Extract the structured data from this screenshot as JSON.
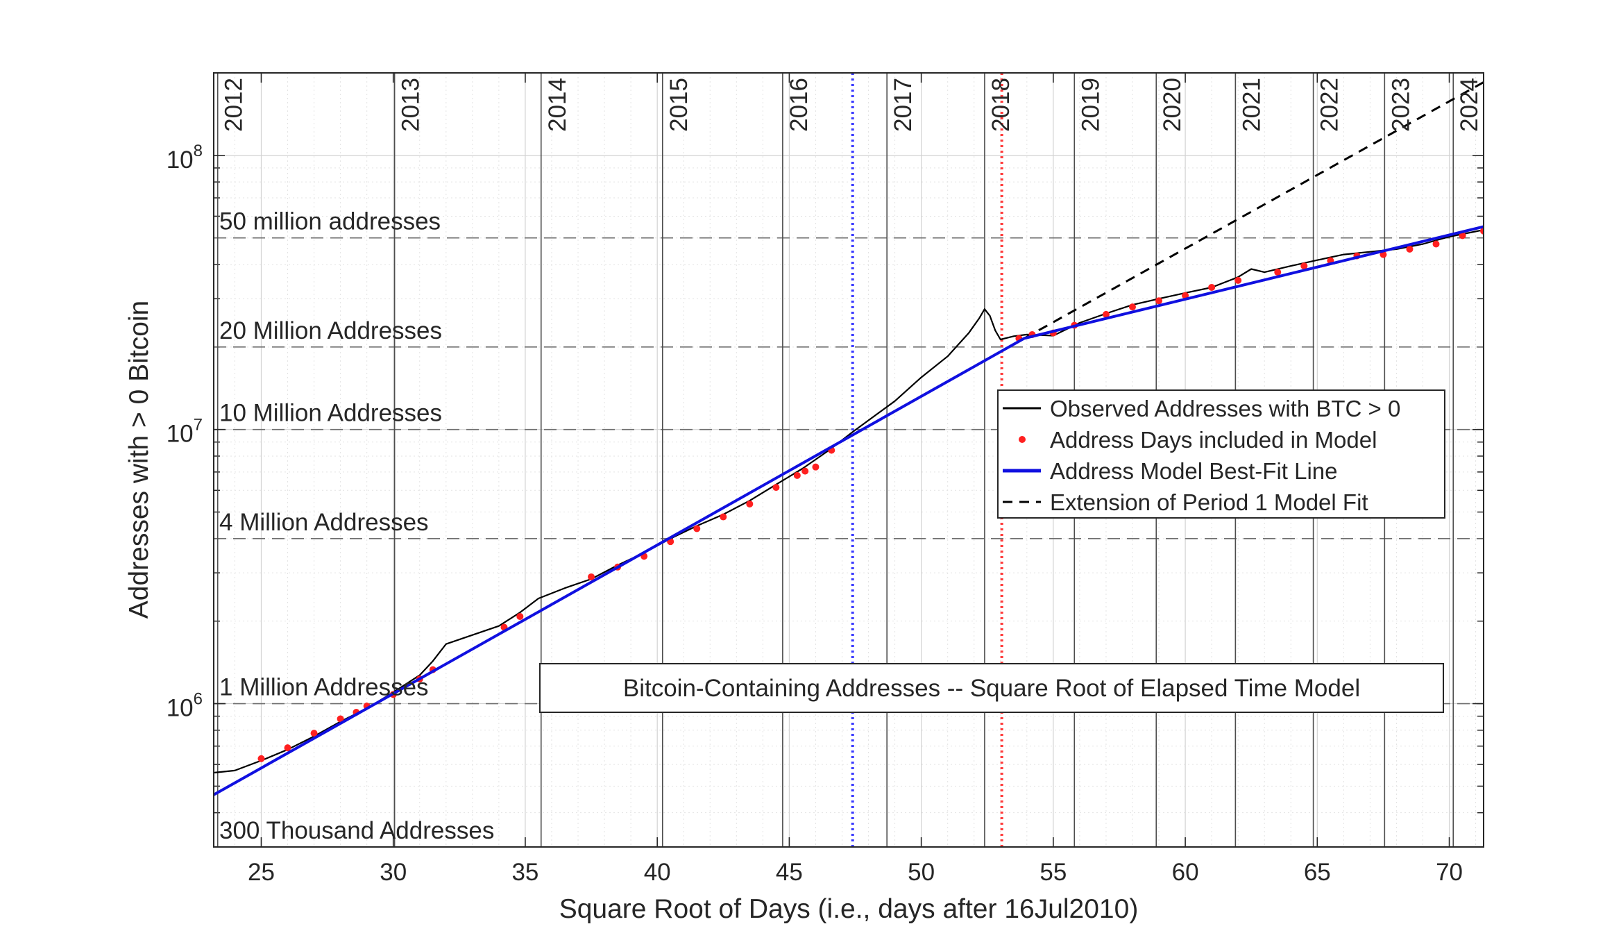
{
  "chart_data": {
    "type": "line",
    "title": "",
    "xlabel": "Square Root of Days (i.e., days after 16Jul2010)",
    "ylabel": "Addresses with > 0 Bitcoin",
    "xlim": [
      23.2,
      71.3
    ],
    "ylim": [
      300000,
      200000000
    ],
    "y_scale": "log",
    "x_ticks": [
      25,
      30,
      35,
      40,
      45,
      50,
      55,
      60,
      65,
      70
    ],
    "y_ticks": [
      {
        "value": 1000000,
        "base": "10",
        "exp": "6"
      },
      {
        "value": 10000000,
        "base": "10",
        "exp": "7"
      },
      {
        "value": 100000000,
        "base": "10",
        "exp": "8"
      }
    ],
    "grid": "on",
    "legend_position": "right-center",
    "annotation_box": "Bitcoin-Containing Addresses -- Square Root of Elapsed Time Model",
    "year_lines": [
      {
        "label": "2012",
        "x": 23.35
      },
      {
        "label": "2013",
        "x": 30.05
      },
      {
        "label": "2014",
        "x": 35.6
      },
      {
        "label": "2015",
        "x": 40.2
      },
      {
        "label": "2016",
        "x": 44.75
      },
      {
        "label": "2017",
        "x": 48.7
      },
      {
        "label": "2018",
        "x": 52.4
      },
      {
        "label": "2019",
        "x": 55.8
      },
      {
        "label": "2020",
        "x": 58.9
      },
      {
        "label": "2021",
        "x": 61.9
      },
      {
        "label": "2022",
        "x": 64.85
      },
      {
        "label": "2023",
        "x": 67.55
      },
      {
        "label": "2024",
        "x": 70.15
      }
    ],
    "reference_levels": [
      {
        "label": "50 million addresses",
        "value": 50000000
      },
      {
        "label": "20 Million Addresses",
        "value": 20000000
      },
      {
        "label": "10 Million Addresses",
        "value": 10000000
      },
      {
        "label": "4 Million Addresses",
        "value": 4000000
      },
      {
        "label": "1 Million Addresses",
        "value": 1000000
      },
      {
        "label": "300 Thousand Addresses",
        "value": 300000
      }
    ],
    "period_markers": [
      {
        "x": 47.4,
        "color": "#3a3aff"
      },
      {
        "x": 53.05,
        "color": "#ff3b3b"
      }
    ],
    "series": [
      {
        "name": "Observed Addresses with BTC > 0",
        "color": "#000000",
        "style": "solid",
        "x": [
          23.2,
          24.0,
          25.0,
          26.0,
          27.0,
          28.0,
          29.0,
          30.0,
          31.0,
          31.5,
          32.0,
          33.0,
          34.0,
          34.8,
          35.5,
          36.5,
          37.5,
          38.5,
          39.5,
          40.5,
          41.5,
          42.5,
          43.5,
          44.5,
          45.5,
          46.5,
          47.4,
          48.0,
          49.0,
          50.0,
          51.0,
          51.8,
          52.2,
          52.4,
          52.6,
          52.8,
          53.0,
          53.5,
          54.0,
          55.0,
          56.0,
          57.0,
          58.0,
          59.0,
          60.0,
          61.0,
          62.0,
          62.5,
          63.0,
          64.0,
          65.0,
          66.0,
          67.0,
          68.0,
          69.0,
          70.0,
          71.3
        ],
        "y": [
          560000,
          570000,
          620000,
          680000,
          760000,
          860000,
          960000,
          1100000,
          1270000,
          1430000,
          1650000,
          1780000,
          1920000,
          2150000,
          2420000,
          2640000,
          2850000,
          3200000,
          3550000,
          4000000,
          4450000,
          4900000,
          5500000,
          6300000,
          7200000,
          8400000,
          9800000,
          10800000,
          12700000,
          15500000,
          18500000,
          22500000,
          25500000,
          27500000,
          26000000,
          23000000,
          21300000,
          21900000,
          22200000,
          22000000,
          24500000,
          26500000,
          28500000,
          30000000,
          31500000,
          33000000,
          36000000,
          38500000,
          37500000,
          39500000,
          41500000,
          43500000,
          44500000,
          45500000,
          47500000,
          50500000,
          53500000
        ]
      },
      {
        "name": "Address Days included in Model",
        "color": "#ff2020",
        "style": "dots",
        "x": [
          25.0,
          26.0,
          27.0,
          28.0,
          28.6,
          29.0,
          30.0,
          31.0,
          31.5,
          34.2,
          34.8,
          37.5,
          38.5,
          39.5,
          40.5,
          41.5,
          42.5,
          43.5,
          44.5,
          45.3,
          45.6,
          46.0,
          46.6,
          53.7,
          54.2,
          55.0,
          55.8,
          57.0,
          58.0,
          59.0,
          60.0,
          61.0,
          62.0,
          63.5,
          64.5,
          65.5,
          66.5,
          67.5,
          68.5,
          69.5,
          70.5,
          71.3
        ],
        "y": [
          630000,
          690000,
          780000,
          880000,
          930000,
          980000,
          1080000,
          1230000,
          1330000,
          1900000,
          2080000,
          2900000,
          3150000,
          3450000,
          3900000,
          4350000,
          4800000,
          5350000,
          6150000,
          6800000,
          7050000,
          7300000,
          8400000,
          21500000,
          22200000,
          22500000,
          24000000,
          26300000,
          28000000,
          29500000,
          30800000,
          33000000,
          35000000,
          37500000,
          39500000,
          41300000,
          43000000,
          43500000,
          45500000,
          47500000,
          51000000,
          53000000
        ]
      },
      {
        "name": "Address Model Best-Fit Line",
        "color": "#1010e0",
        "style": "solid",
        "x": [
          23.2,
          53.9,
          71.3
        ],
        "y": [
          465000,
          21500000,
          55000000
        ]
      },
      {
        "name": "Extension of Period 1 Model Fit",
        "color": "#000000",
        "style": "dashed",
        "x": [
          53.9,
          71.3
        ],
        "y": [
          21500000,
          185000000
        ]
      }
    ]
  }
}
